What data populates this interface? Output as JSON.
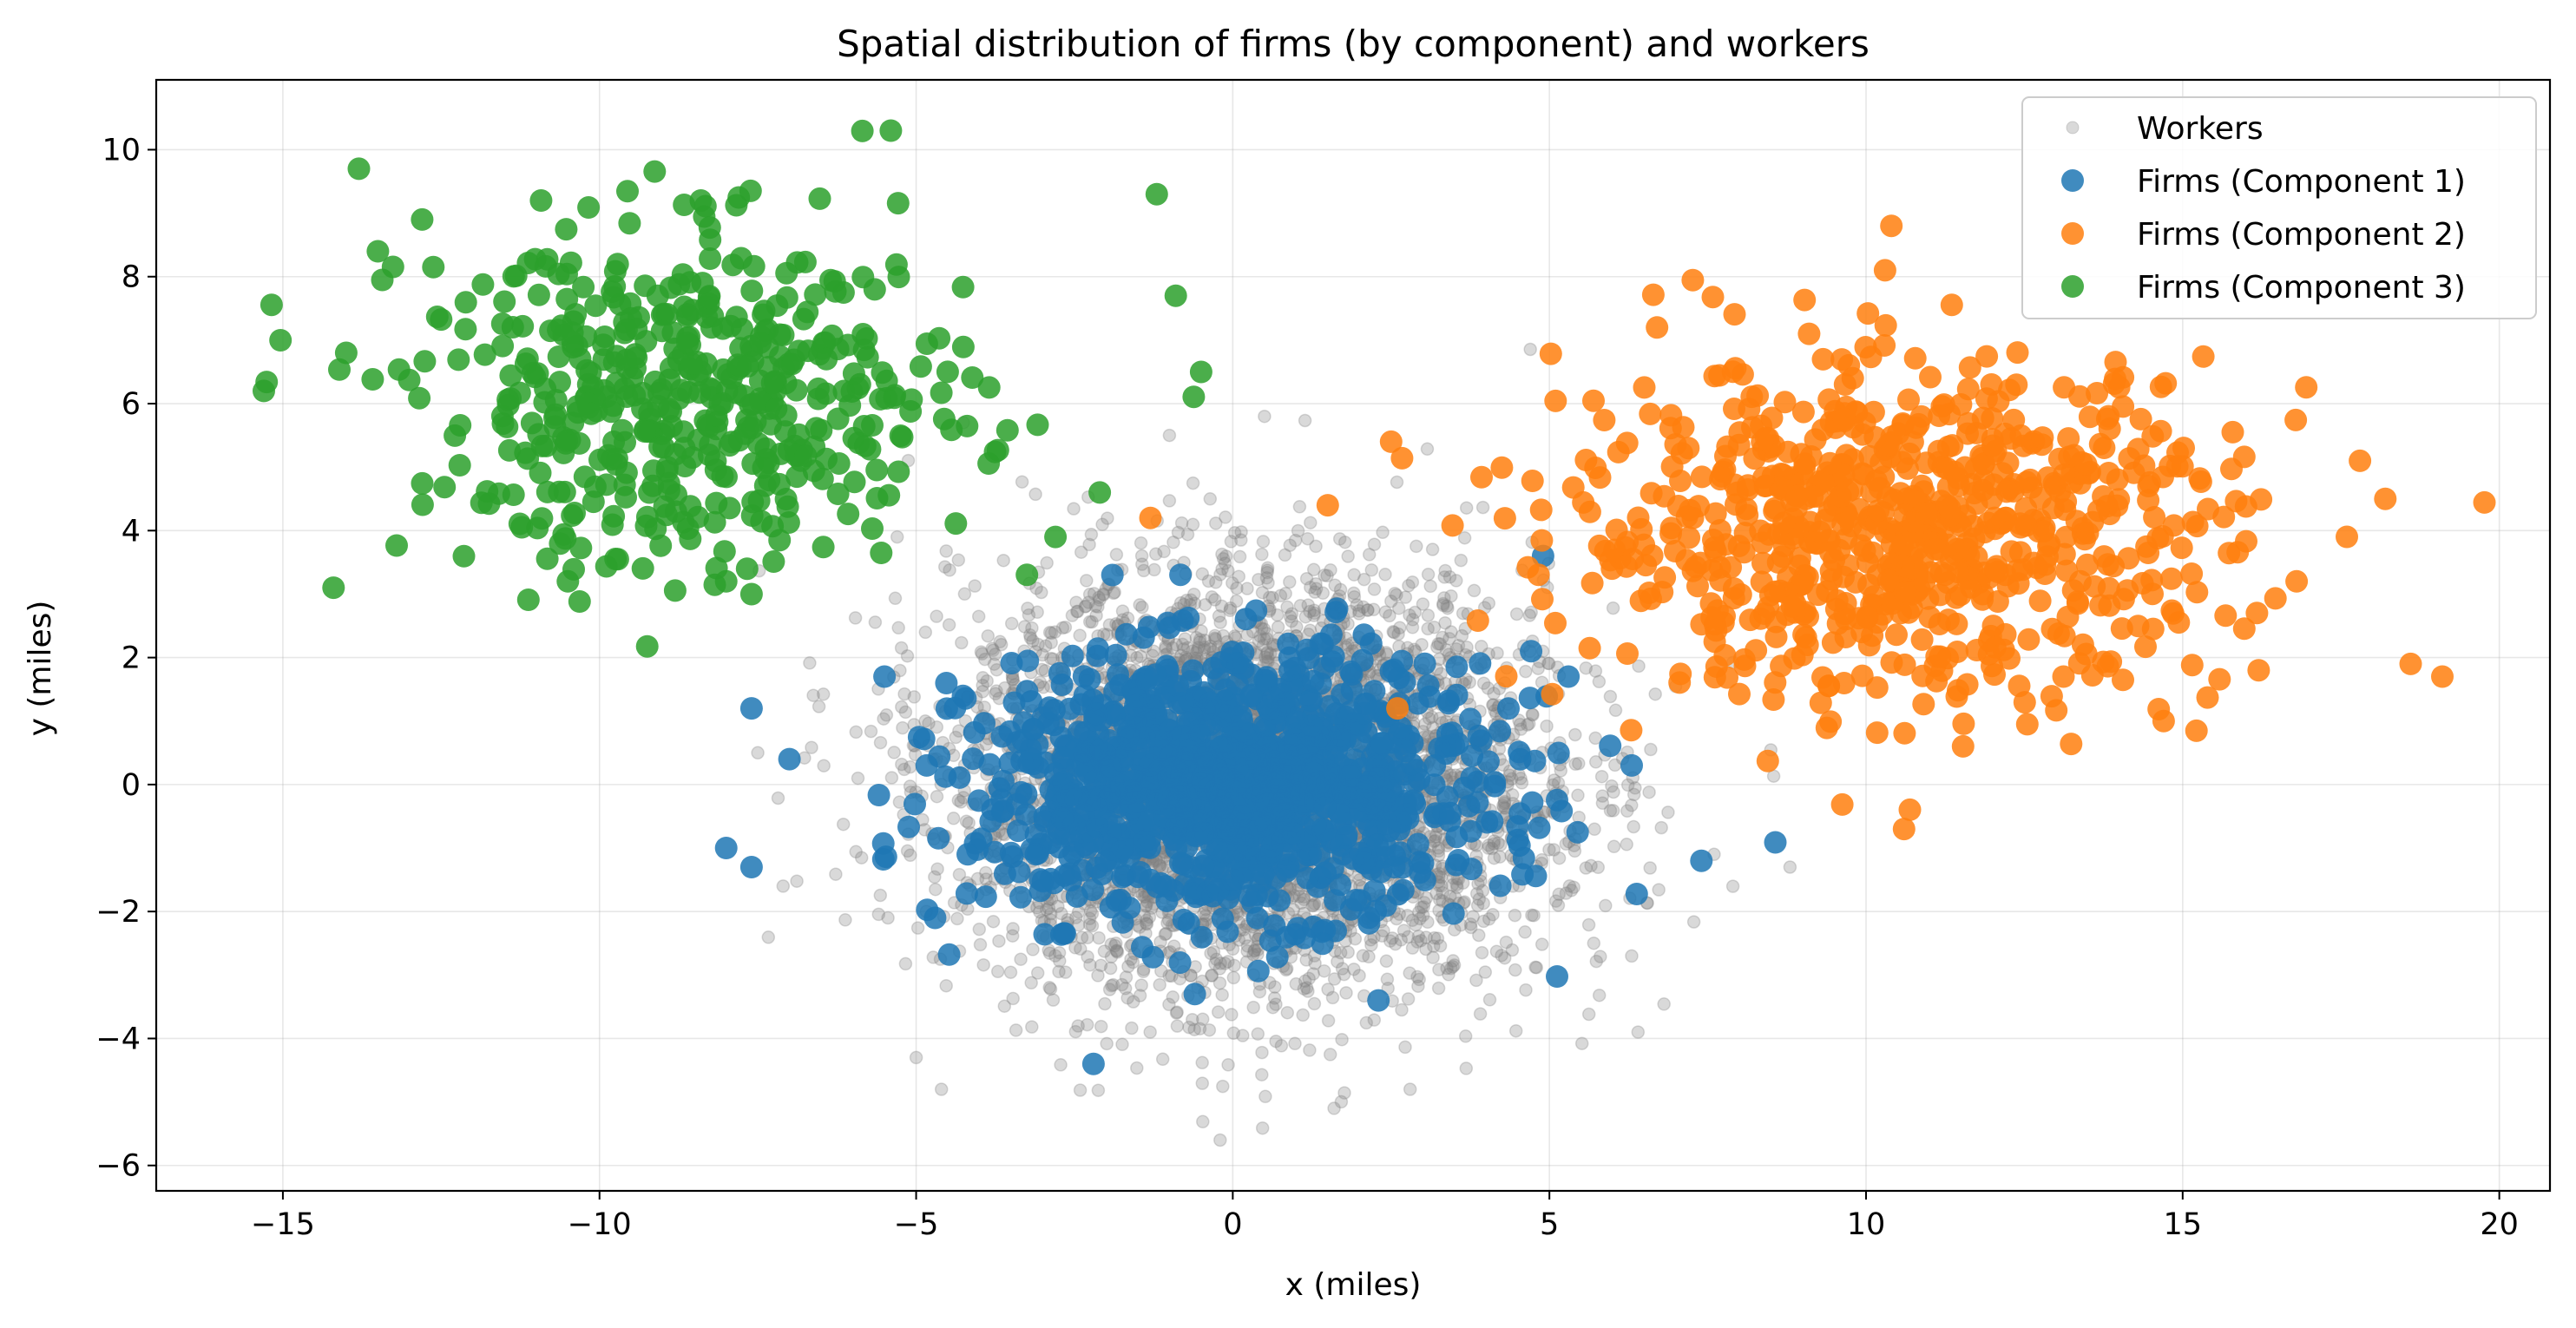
{
  "chart_data": {
    "type": "scatter",
    "title": "Spatial distribution of firms (by component) and workers",
    "xlabel": "x (miles)",
    "ylabel": "y (miles)",
    "xlim": [
      -17.0,
      20.8
    ],
    "ylim": [
      -6.4,
      11.1
    ],
    "xticks": [
      -15,
      -10,
      -5,
      0,
      5,
      10,
      15,
      20
    ],
    "xtick_labels": [
      "−15",
      "−10",
      "−5",
      "0",
      "5",
      "10",
      "15",
      "20"
    ],
    "yticks": [
      -6,
      -4,
      -2,
      0,
      2,
      4,
      6,
      8,
      10
    ],
    "ytick_labels": [
      "−6",
      "−4",
      "−2",
      "0",
      "2",
      "4",
      "6",
      "8",
      "10"
    ],
    "grid": true,
    "legend_position": "top-right",
    "series": [
      {
        "name": "Workers",
        "color": "#808080",
        "marker": "small-circle",
        "opacity": 0.3,
        "distribution": {
          "center_x": 0.3,
          "center_y": 0.0,
          "std_x": 2.3,
          "std_y": 1.6,
          "count": 4500
        },
        "points": [
          [
            6.4,
            -3.9
          ],
          [
            -4.6,
            -4.8
          ],
          [
            1.6,
            -5.1
          ],
          [
            -0.2,
            -5.6
          ],
          [
            7.6,
            -1.1
          ],
          [
            8.8,
            -1.3
          ],
          [
            0.5,
            5.8
          ],
          [
            -1.0,
            5.5
          ],
          [
            -7.5,
            0.5
          ],
          [
            -7.1,
            -1.6
          ],
          [
            -5.3,
            3.9
          ],
          [
            5.7,
            -2.5
          ],
          [
            6.3,
            -2.7
          ],
          [
            2.8,
            -4.8
          ],
          [
            -5.0,
            -4.3
          ]
        ]
      },
      {
        "name": "Firms (Component 1)",
        "color": "#1f77b4",
        "marker": "circle",
        "opacity": 0.85,
        "distribution": {
          "center_x": 0.0,
          "center_y": 0.0,
          "std_x": 2.0,
          "std_y": 1.0,
          "count": 1200
        },
        "points": [
          [
            -2.2,
            -4.4
          ],
          [
            -7.6,
            1.2
          ],
          [
            -8.0,
            -1.0
          ],
          [
            -7.6,
            -1.3
          ],
          [
            -7.0,
            0.4
          ],
          [
            7.4,
            -1.2
          ],
          [
            4.9,
            3.6
          ],
          [
            -1.9,
            3.3
          ],
          [
            2.3,
            -3.4
          ],
          [
            -4.7,
            -2.1
          ],
          [
            6.3,
            0.3
          ],
          [
            5.3,
            1.7
          ],
          [
            -5.5,
            1.7
          ],
          [
            -0.6,
            -3.3
          ]
        ]
      },
      {
        "name": "Firms (Component 2)",
        "color": "#ff7f0e",
        "marker": "circle",
        "opacity": 0.85,
        "distribution": {
          "center_x": 10.5,
          "center_y": 4.0,
          "std_x": 2.6,
          "std_y": 1.3,
          "count": 800
        },
        "points": [
          [
            10.4,
            8.8
          ],
          [
            10.3,
            8.1
          ],
          [
            10.6,
            -0.7
          ],
          [
            19.1,
            1.7
          ],
          [
            18.6,
            1.9
          ],
          [
            14.7,
            1.0
          ],
          [
            -1.3,
            4.2
          ],
          [
            1.5,
            4.4
          ],
          [
            2.6,
            1.2
          ],
          [
            2.5,
            5.4
          ],
          [
            16.2,
            1.8
          ],
          [
            18.2,
            4.5
          ],
          [
            17.8,
            5.1
          ],
          [
            16.8,
            3.2
          ],
          [
            6.7,
            7.2
          ]
        ]
      },
      {
        "name": "Firms (Component 3)",
        "color": "#2ca02c",
        "marker": "circle",
        "opacity": 0.85,
        "distribution": {
          "center_x": -8.5,
          "center_y": 6.0,
          "std_x": 2.2,
          "std_y": 1.3,
          "count": 500
        },
        "points": [
          [
            -15.3,
            6.2
          ],
          [
            -14.2,
            3.1
          ],
          [
            -13.8,
            9.7
          ],
          [
            -5.4,
            10.3
          ],
          [
            -14.0,
            6.8
          ],
          [
            -7.6,
            3.0
          ],
          [
            -8.0,
            3.2
          ],
          [
            -1.2,
            9.3
          ],
          [
            -0.9,
            7.7
          ],
          [
            -0.5,
            6.5
          ],
          [
            -2.8,
            3.9
          ],
          [
            -2.1,
            4.6
          ],
          [
            -10.5,
            3.2
          ],
          [
            -12.8,
            8.9
          ],
          [
            -13.5,
            8.4
          ],
          [
            -8.4,
            9.2
          ]
        ]
      }
    ]
  }
}
